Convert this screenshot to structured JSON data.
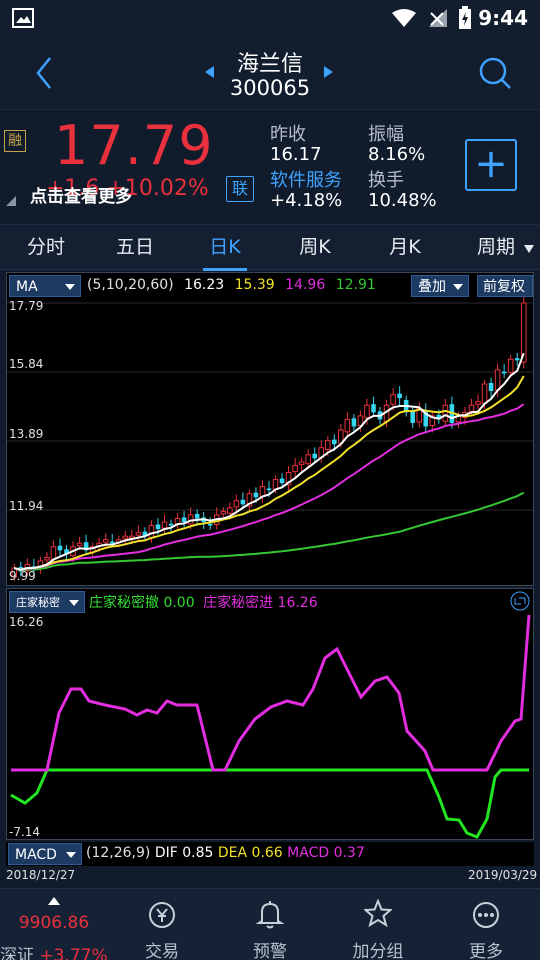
{
  "stock": {
    "name": "海兰信",
    "code": "300065"
  },
  "quote": {
    "badge": "融",
    "price": "17.79",
    "change_overlay": "+1.6 +10.02%",
    "hint": "点击查看更多",
    "link_badge": "联",
    "prev_close_label": "昨收",
    "prev_close": "16.17",
    "amplitude_label": "振幅",
    "amplitude": "8.16%",
    "sector_label": "软件服务",
    "sector_change": "+4.18%",
    "turnover_label": "换手",
    "turnover": "10.48%",
    "add_label": "+"
  },
  "tabs": [
    "分时",
    "五日",
    "日K",
    "周K",
    "月K",
    "周期"
  ],
  "active_tab": 2,
  "kline": {
    "indicator": "MA",
    "params": "(5,10,20,60)",
    "ma5": "16.23",
    "ma10": "15.39",
    "ma20": "14.96",
    "ma60": "12.91",
    "overlay_btn": "叠加",
    "adjust_btn": "前复权",
    "y_labels": [
      "17.79",
      "15.84",
      "13.89",
      "11.94",
      "9.99"
    ]
  },
  "sub": {
    "indicator": "庄家秘密",
    "withdraw_label": "庄家秘密撤",
    "withdraw_val": "0.00",
    "enter_label": "庄家秘密进",
    "enter_val": "16.26",
    "y_top": "16.26",
    "y_bottom": "-7.14"
  },
  "macd": {
    "indicator": "MACD",
    "params": "(12,26,9)",
    "dif_label": "DIF",
    "dif": "0.85",
    "dea_label": "DEA",
    "dea": "0.66",
    "macd_label": "MACD",
    "macd": "0.37",
    "date_start": "2018/12/27",
    "date_end": "2019/03/29"
  },
  "chart_data": {
    "type": "candlestick",
    "ylim": [
      9.99,
      17.79
    ],
    "closes": [
      10.3,
      10.2,
      10.4,
      10.3,
      10.5,
      10.6,
      10.9,
      10.8,
      10.7,
      10.9,
      11.0,
      10.8,
      10.9,
      11.0,
      11.1,
      11.0,
      11.1,
      11.2,
      11.2,
      11.3,
      11.2,
      11.5,
      11.4,
      11.6,
      11.5,
      11.7,
      11.6,
      11.8,
      11.7,
      11.6,
      11.5,
      11.8,
      11.9,
      12.0,
      12.2,
      12.1,
      12.4,
      12.3,
      12.6,
      12.5,
      12.8,
      12.7,
      13.0,
      13.2,
      13.3,
      13.5,
      13.4,
      13.7,
      13.9,
      13.8,
      14.2,
      14.5,
      14.3,
      14.6,
      14.9,
      14.7,
      14.5,
      14.9,
      15.2,
      15.1,
      14.7,
      14.4,
      14.8,
      14.3,
      14.6,
      14.5,
      14.9,
      14.4,
      14.6,
      14.7,
      14.9,
      15.0,
      15.5,
      15.3,
      15.9,
      15.8,
      16.2,
      16.17,
      17.79
    ]
  },
  "nav": {
    "index_value": "9906.86",
    "index_name": "深证",
    "index_change": "+3.77%",
    "items": [
      "交易",
      "预警",
      "加分组",
      "更多"
    ]
  }
}
